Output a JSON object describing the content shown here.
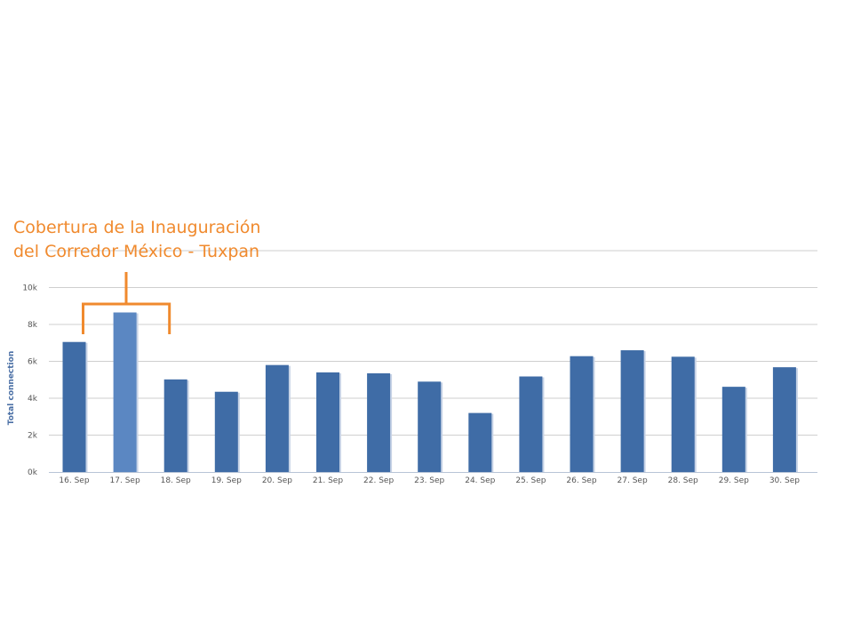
{
  "chart_data": {
    "type": "bar",
    "categories": [
      "16. Sep",
      "17. Sep",
      "18. Sep",
      "19. Sep",
      "20. Sep",
      "21. Sep",
      "22. Sep",
      "23. Sep",
      "24. Sep",
      "25. Sep",
      "26. Sep",
      "27. Sep",
      "28. Sep",
      "29. Sep",
      "30. Sep"
    ],
    "values": [
      7050,
      8650,
      5020,
      4350,
      5800,
      5400,
      5350,
      4900,
      3200,
      5180,
      6280,
      6600,
      6250,
      4620,
      5680
    ],
    "ylabel": "Total connection",
    "ylim": [
      0,
      12000
    ],
    "yticks": [
      0,
      2000,
      4000,
      6000,
      8000,
      10000
    ],
    "ytick_labels": [
      "0k",
      "2k",
      "4k",
      "6k",
      "8k",
      "10k"
    ],
    "grid": true,
    "highlighted_category": "17. Sep",
    "annotation": {
      "lines": [
        "Cobertura de la Inauguración",
        "del Corredor México - Tuxpan"
      ]
    }
  },
  "colors": {
    "bar": "#3f6ca6",
    "bar_highlight": "#5b87c2",
    "bar_shadow": "#c7d3e6",
    "annotation": "#f08a2e"
  }
}
